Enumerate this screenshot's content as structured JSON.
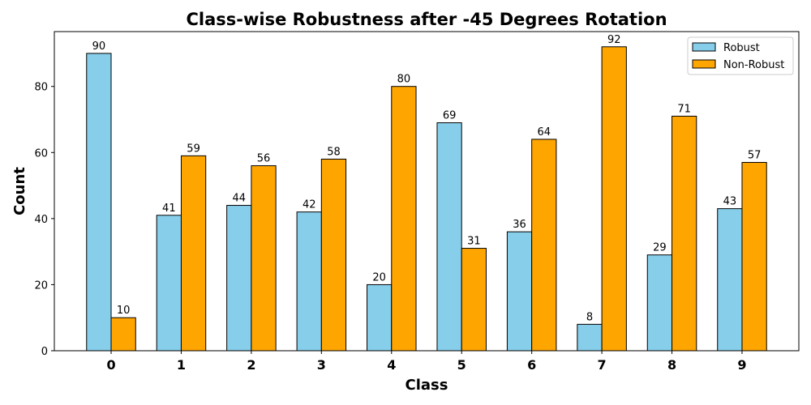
{
  "chart_data": {
    "type": "bar",
    "title": "Class-wise Robustness after -45 Degrees Rotation",
    "xlabel": "Class",
    "ylabel": "Count",
    "categories": [
      "0",
      "1",
      "2",
      "3",
      "4",
      "5",
      "6",
      "7",
      "8",
      "9"
    ],
    "series": [
      {
        "name": "Robust",
        "color": "#87ceeb",
        "values": [
          90,
          41,
          44,
          42,
          20,
          69,
          36,
          8,
          29,
          43
        ]
      },
      {
        "name": "Non-Robust",
        "color": "#ffa500",
        "values": [
          10,
          59,
          56,
          58,
          80,
          31,
          64,
          92,
          71,
          57
        ]
      }
    ],
    "ylim": [
      0,
      96.6
    ],
    "yticks": [
      0,
      20,
      40,
      60,
      80
    ],
    "grid": false,
    "legend": "top-right",
    "data_labels": true
  }
}
